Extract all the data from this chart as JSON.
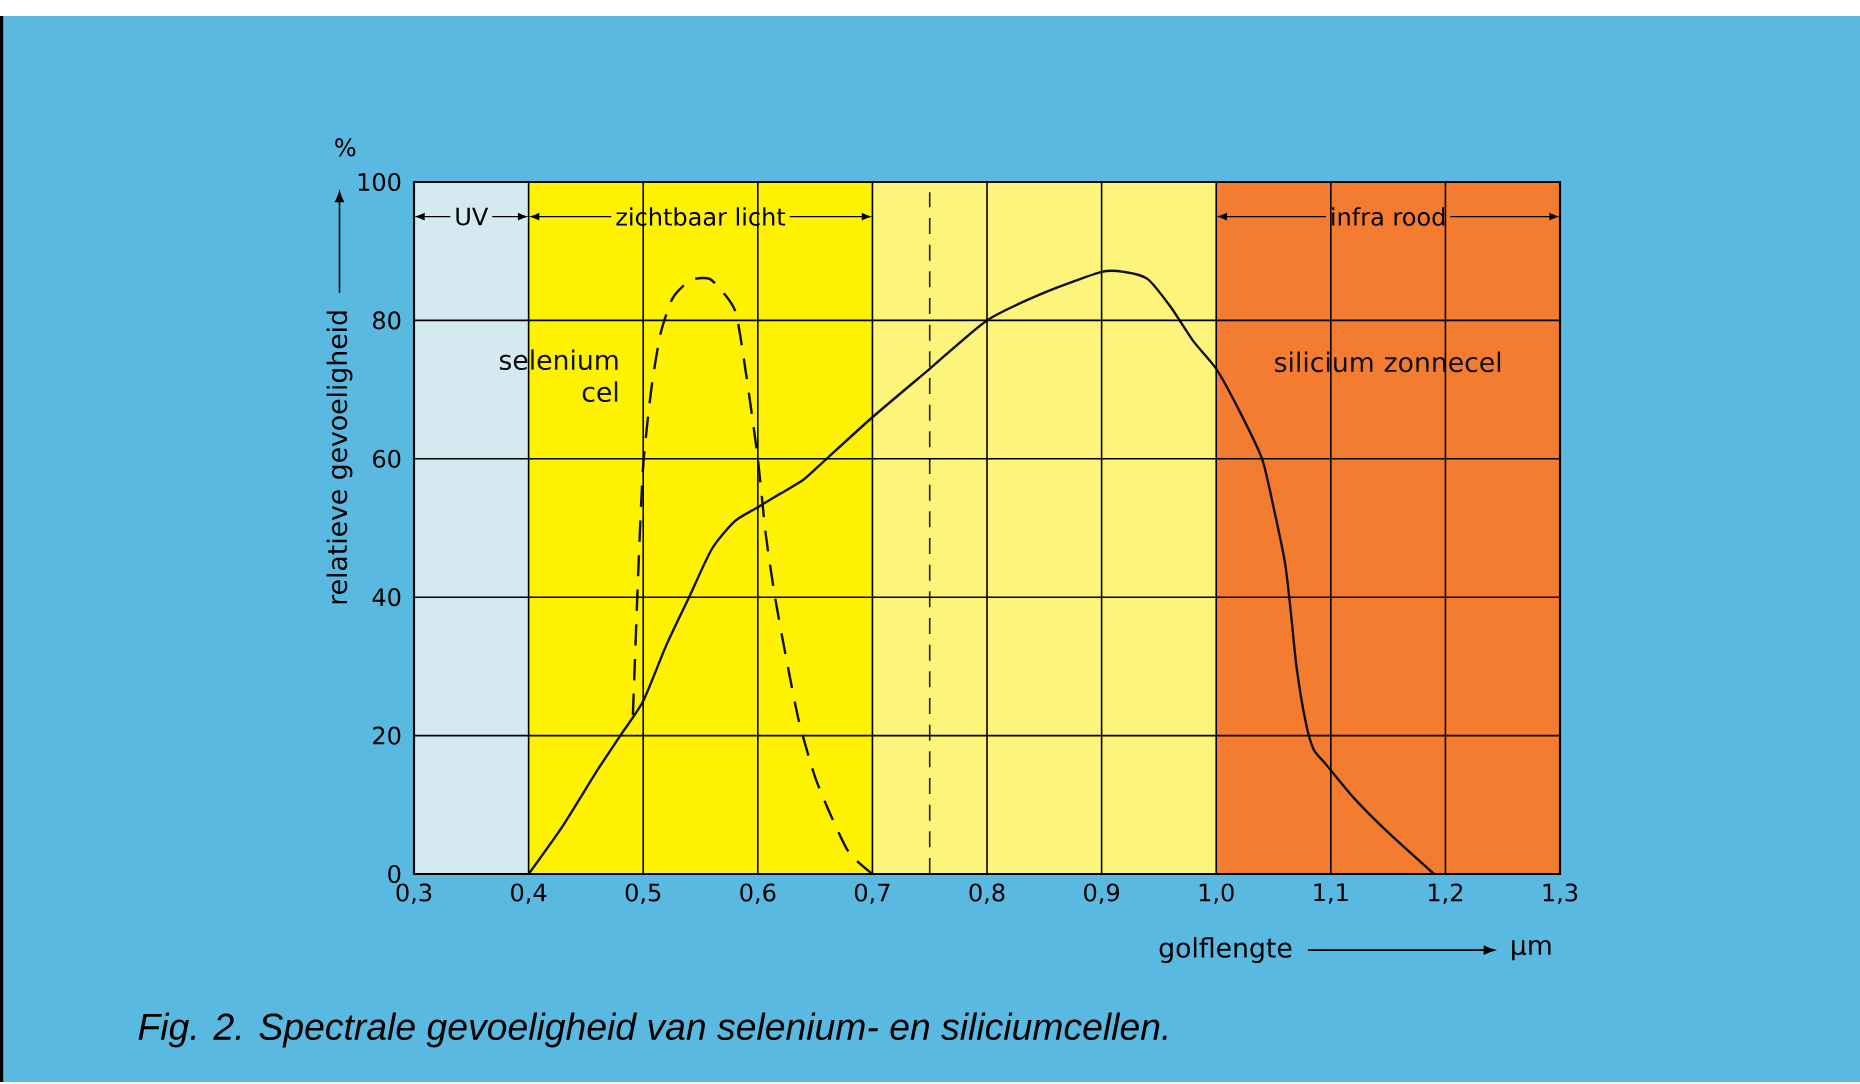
{
  "chart_data": {
    "type": "line",
    "xlabel": "golflengte",
    "ylabel": "relatieve gevoeligheid",
    "annotations": [
      "%",
      "µm",
      "*Fig. 2.    Spectrale gevoeligheid van selenium- en siliciumcellen.*"
    ],
    "xlim": [
      0.3,
      1.3
    ],
    "ylim": [
      0,
      100
    ],
    "xticks": [
      {
        "value": 0.3,
        "label": "0,3"
      },
      {
        "value": 0.4,
        "label": "0,4"
      },
      {
        "value": 0.5,
        "label": "0,5"
      },
      {
        "value": 0.6,
        "label": "0,6"
      },
      {
        "value": 0.7,
        "label": "0,7"
      },
      {
        "value": 0.8,
        "label": "0,8"
      },
      {
        "value": 0.9,
        "label": "0,9"
      },
      {
        "value": 1.0,
        "label": "1,0"
      },
      {
        "value": 1.1,
        "label": "1,1"
      },
      {
        "value": 1.2,
        "label": "1,2"
      },
      {
        "value": 1.3,
        "label": "1,3"
      }
    ],
    "yticks": [
      0,
      20,
      40,
      60,
      80,
      100
    ],
    "grid": true,
    "bands": [
      {
        "axis": "x",
        "from": 0.3,
        "to": 0.4,
        "label": "UV",
        "color": "#d4eaf0"
      },
      {
        "axis": "x",
        "from": 0.4,
        "to": 0.7,
        "label": "zichtbaar licht",
        "color": "#fff200"
      },
      {
        "axis": "x",
        "from": 0.7,
        "to": 1.0,
        "color": "#fdf47c"
      },
      {
        "axis": "x",
        "from": 1.0,
        "to": 1.3,
        "label": "infra rood",
        "color": "#f47c30"
      }
    ],
    "ref_lines": [
      {
        "axis": "x",
        "value": 0.75,
        "line_style": "dashed",
        "color": "#222222"
      }
    ],
    "series": [
      {
        "name": "selenium cel",
        "color": "#111111",
        "line_style": "dashed",
        "x": [
          0.491,
          0.496,
          0.5,
          0.507,
          0.515,
          0.525,
          0.535,
          0.545,
          0.558,
          0.57,
          0.581,
          0.59,
          0.6,
          0.607,
          0.615,
          0.625,
          0.636,
          0.65,
          0.665,
          0.68,
          0.7
        ],
        "values": [
          23,
          45,
          59,
          70,
          78,
          83,
          85,
          86,
          86,
          84,
          81,
          72,
          60,
          49,
          40,
          31,
          22,
          14,
          8,
          3,
          0
        ]
      },
      {
        "name": "silicium zonnecel",
        "color": "#111111",
        "line_style": "solid",
        "x": [
          0.4,
          0.43,
          0.46,
          0.48,
          0.5,
          0.52,
          0.54,
          0.56,
          0.58,
          0.6,
          0.62,
          0.64,
          0.66,
          0.7,
          0.75,
          0.8,
          0.85,
          0.9,
          0.92,
          0.94,
          0.96,
          0.98,
          1.0,
          1.02,
          1.04,
          1.05,
          1.06,
          1.065,
          1.07,
          1.078,
          1.085,
          1.095,
          1.12,
          1.15,
          1.19
        ],
        "values": [
          0,
          7,
          15,
          20,
          25,
          33,
          40,
          47,
          51,
          53,
          55,
          57,
          60,
          66,
          73,
          80,
          84,
          87,
          87,
          86,
          82,
          77,
          73,
          67,
          60,
          53,
          45,
          38,
          30,
          22,
          18,
          16,
          11,
          6,
          0
        ]
      }
    ]
  }
}
